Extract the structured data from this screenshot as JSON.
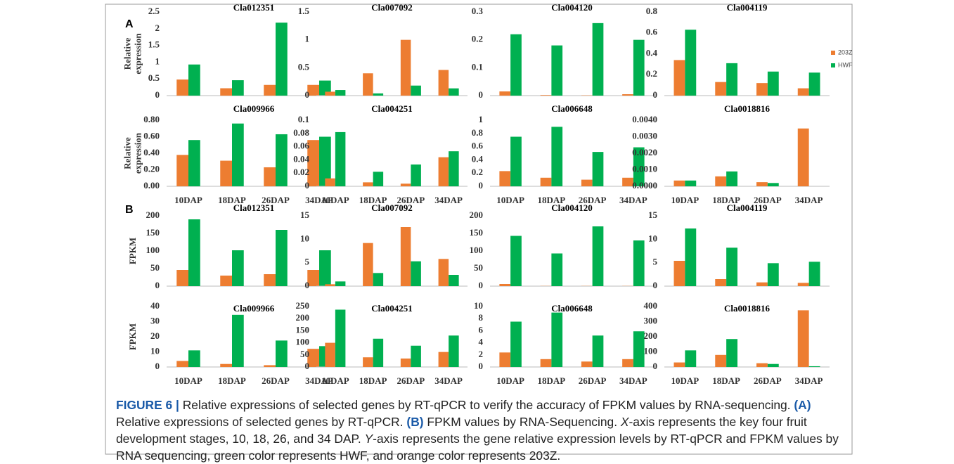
{
  "panels": [
    "A",
    "B"
  ],
  "caption": [
    "FIGURE 6 |",
    " Relative expressions of selected genes by RT-qPCR to verify the accuracy of FPKM values by RNA-sequencing. ",
    "(A)",
    " Relative expressions of selected genes by RT-qPCR. ",
    "(B)",
    " FPKM values by RNA-Sequencing. ",
    "X",
    "-axis represents the key four fruit development stages, 10, 18, 26, and 34 DAP. ",
    "Y",
    "-axis represents the gene relative expression levels by RT-qPCR and FPKM values by RNA sequencing, green color represents HWF, and orange color represents 203Z."
  ],
  "chart_data": [
    {
      "type": "bar",
      "title": "Cla012351",
      "ylabel": [
        "Relative",
        "expression"
      ],
      "categories": [
        null,
        null,
        null,
        null
      ],
      "ylim": [
        0,
        2.5
      ],
      "yticks": [
        0,
        0.5,
        1,
        1.5,
        2,
        2.5
      ],
      "series": [
        {
          "color": "#ed7d31",
          "values": [
            0.48,
            0.22,
            0.32,
            0.32
          ]
        },
        {
          "color": "#00b050",
          "values": [
            0.93,
            0.46,
            2.18,
            0.45
          ]
        }
      ]
    },
    {
      "type": "bar",
      "title": "Cla007092",
      "categories": [
        null,
        null,
        null,
        null
      ],
      "ylim": [
        0,
        1.5
      ],
      "yticks": [
        0,
        0.5,
        1,
        1.5
      ],
      "series": [
        {
          "color": "#ed7d31",
          "values": [
            0.07,
            0.4,
            1.0,
            0.46
          ]
        },
        {
          "color": "#00b050",
          "values": [
            0.1,
            0.04,
            0.18,
            0.13
          ]
        }
      ]
    },
    {
      "type": "bar",
      "title": "Cla004120",
      "categories": [
        null,
        null,
        null,
        null
      ],
      "ylim": [
        0,
        0.3
      ],
      "yticks": [
        0,
        0.1,
        0.2,
        0.3
      ],
      "series": [
        {
          "color": "#ed7d31",
          "values": [
            0.015,
            0.002,
            0.001,
            0.005
          ]
        },
        {
          "color": "#00b050",
          "values": [
            0.22,
            0.18,
            0.26,
            0.2
          ]
        }
      ]
    },
    {
      "type": "bar",
      "title": "Cla004119",
      "categories": [
        null,
        null,
        null,
        null
      ],
      "ylim": [
        0,
        0.8
      ],
      "yticks": [
        0,
        0.2,
        0.4,
        0.6,
        0.8
      ],
      "series": [
        {
          "name": "203Z",
          "color": "#ed7d31",
          "values": [
            0.34,
            0.13,
            0.12,
            0.07
          ]
        },
        {
          "name": "HWF",
          "color": "#00b050",
          "values": [
            0.63,
            0.31,
            0.23,
            0.22
          ]
        }
      ]
    },
    {
      "type": "bar",
      "title": "Cla009966",
      "ylabel": [
        "Relative",
        "expression"
      ],
      "categories": [
        "10DAP",
        "18DAP",
        "26DAP",
        "34DAP"
      ],
      "ylim": [
        0,
        0.8
      ],
      "yticks": [
        {
          "value": 0,
          "label": "0.00"
        },
        {
          "value": 0.2,
          "label": "0.20"
        },
        {
          "value": 0.4,
          "label": "0.40"
        },
        {
          "value": 0.6,
          "label": "0.60"
        },
        {
          "value": 0.8,
          "label": "0.80"
        }
      ],
      "series": [
        {
          "color": "#ed7d31",
          "values": [
            0.38,
            0.31,
            0.23,
            0.56
          ]
        },
        {
          "color": "#00b050",
          "values": [
            0.56,
            0.76,
            0.63,
            0.6
          ]
        }
      ]
    },
    {
      "type": "bar",
      "title": "Cla004251",
      "categories": [
        "10DAP",
        "18DAP",
        "26DAP",
        "34DAP"
      ],
      "ylim": [
        0,
        0.1
      ],
      "yticks": [
        0,
        0.02,
        0.04,
        0.06,
        0.08,
        0.1
      ],
      "series": [
        {
          "color": "#ed7d31",
          "values": [
            0.012,
            0.006,
            0.004,
            0.044
          ]
        },
        {
          "color": "#00b050",
          "values": [
            0.082,
            0.022,
            0.033,
            0.053
          ]
        }
      ]
    },
    {
      "type": "bar",
      "title": "Cla006648",
      "categories": [
        "10DAP",
        "18DAP",
        "26DAP",
        "34DAP"
      ],
      "ylim": [
        0,
        1
      ],
      "yticks": [
        0,
        0.2,
        0.4,
        0.6,
        0.8,
        1
      ],
      "series": [
        {
          "color": "#ed7d31",
          "values": [
            0.23,
            0.13,
            0.1,
            0.13
          ]
        },
        {
          "color": "#00b050",
          "values": [
            0.75,
            0.9,
            0.52,
            0.59
          ]
        }
      ]
    },
    {
      "type": "bar",
      "title": "Cla0018816",
      "categories": [
        "10DAP",
        "18DAP",
        "26DAP",
        "34DAP"
      ],
      "ylim": [
        0,
        0.004
      ],
      "yticks": [
        {
          "value": 0,
          "label": "0.0000"
        },
        {
          "value": 0.001,
          "label": "0.0010"
        },
        {
          "value": 0.002,
          "label": "0.0020"
        },
        {
          "value": 0.003,
          "label": "0.0030"
        },
        {
          "value": 0.004,
          "label": "0.0040"
        }
      ],
      "series": [
        {
          "color": "#ed7d31",
          "values": [
            0.00035,
            0.0006,
            0.00025,
            0.0035
          ]
        },
        {
          "color": "#00b050",
          "values": [
            0.00035,
            0.0009,
            0.0002,
            0
          ]
        }
      ]
    },
    {
      "type": "bar",
      "title": "Cla012351",
      "ylabel": [
        "FPKM"
      ],
      "categories": [
        null,
        null,
        null,
        null
      ],
      "ylim": [
        0,
        200
      ],
      "yticks": [
        0,
        50,
        100,
        150,
        200
      ],
      "series": [
        {
          "color": "#ed7d31",
          "values": [
            46,
            30,
            34,
            46
          ]
        },
        {
          "color": "#00b050",
          "values": [
            190,
            102,
            160,
            102
          ]
        }
      ]
    },
    {
      "type": "bar",
      "title": "Cla007092",
      "categories": [
        null,
        null,
        null,
        null
      ],
      "ylim": [
        0,
        15
      ],
      "yticks": [
        0,
        5,
        10,
        15
      ],
      "series": [
        {
          "color": "#ed7d31",
          "values": [
            0.4,
            9.2,
            12.6,
            5.8
          ]
        },
        {
          "color": "#00b050",
          "values": [
            1.0,
            2.8,
            5.3,
            2.4
          ]
        }
      ]
    },
    {
      "type": "bar",
      "title": "Cla004120",
      "categories": [
        null,
        null,
        null,
        null
      ],
      "ylim": [
        0,
        200
      ],
      "yticks": [
        0,
        50,
        100,
        150,
        200
      ],
      "series": [
        {
          "color": "#ed7d31",
          "values": [
            6,
            0.5,
            0.5,
            0.5
          ]
        },
        {
          "color": "#00b050",
          "values": [
            143,
            93,
            170,
            130
          ]
        }
      ]
    },
    {
      "type": "bar",
      "title": "Cla004119",
      "categories": [
        null,
        null,
        null,
        null
      ],
      "ylim": [
        0,
        15
      ],
      "yticks": [
        0,
        5,
        10,
        15
      ],
      "series": [
        {
          "color": "#ed7d31",
          "values": [
            5.4,
            1.5,
            0.8,
            0.7
          ]
        },
        {
          "color": "#00b050",
          "values": [
            12.3,
            8.2,
            4.9,
            5.2
          ]
        }
      ]
    },
    {
      "type": "bar",
      "title": "Cla009966",
      "ylabel": [
        "FPKM"
      ],
      "categories": [
        "10DAP",
        "18DAP",
        "26DAP",
        "34DAP"
      ],
      "ylim": [
        0,
        40
      ],
      "yticks": [
        0,
        10,
        20,
        30,
        40
      ],
      "series": [
        {
          "color": "#ed7d31",
          "values": [
            4,
            2,
            1.2,
            12
          ]
        },
        {
          "color": "#00b050",
          "values": [
            11,
            34.5,
            17.5,
            13.8
          ]
        }
      ]
    },
    {
      "type": "bar",
      "title": "Cla004251",
      "categories": [
        "10DAP",
        "18DAP",
        "26DAP",
        "34DAP"
      ],
      "ylim": [
        0,
        250
      ],
      "yticks": [
        0,
        50,
        100,
        150,
        200,
        250
      ],
      "series": [
        {
          "color": "#ed7d31",
          "values": [
            100,
            40,
            35,
            62
          ]
        },
        {
          "color": "#00b050",
          "values": [
            237,
            117,
            88,
            130
          ]
        }
      ]
    },
    {
      "type": "bar",
      "title": "Cla006648",
      "categories": [
        "10DAP",
        "18DAP",
        "26DAP",
        "34DAP"
      ],
      "ylim": [
        0,
        10
      ],
      "yticks": [
        0,
        2,
        4,
        6,
        8,
        10
      ],
      "series": [
        {
          "color": "#ed7d31",
          "values": [
            2.4,
            1.3,
            0.9,
            1.3
          ]
        },
        {
          "color": "#00b050",
          "values": [
            7.5,
            9,
            5.2,
            5.9
          ]
        }
      ]
    },
    {
      "type": "bar",
      "title": "Cla0018816",
      "categories": [
        "10DAP",
        "18DAP",
        "26DAP",
        "34DAP"
      ],
      "ylim": [
        0,
        400
      ],
      "yticks": [
        0,
        100,
        200,
        300,
        400
      ],
      "series": [
        {
          "color": "#ed7d31",
          "values": [
            30,
            80,
            25,
            375
          ]
        },
        {
          "color": "#00b050",
          "values": [
            110,
            185,
            20,
            5
          ]
        }
      ]
    }
  ]
}
